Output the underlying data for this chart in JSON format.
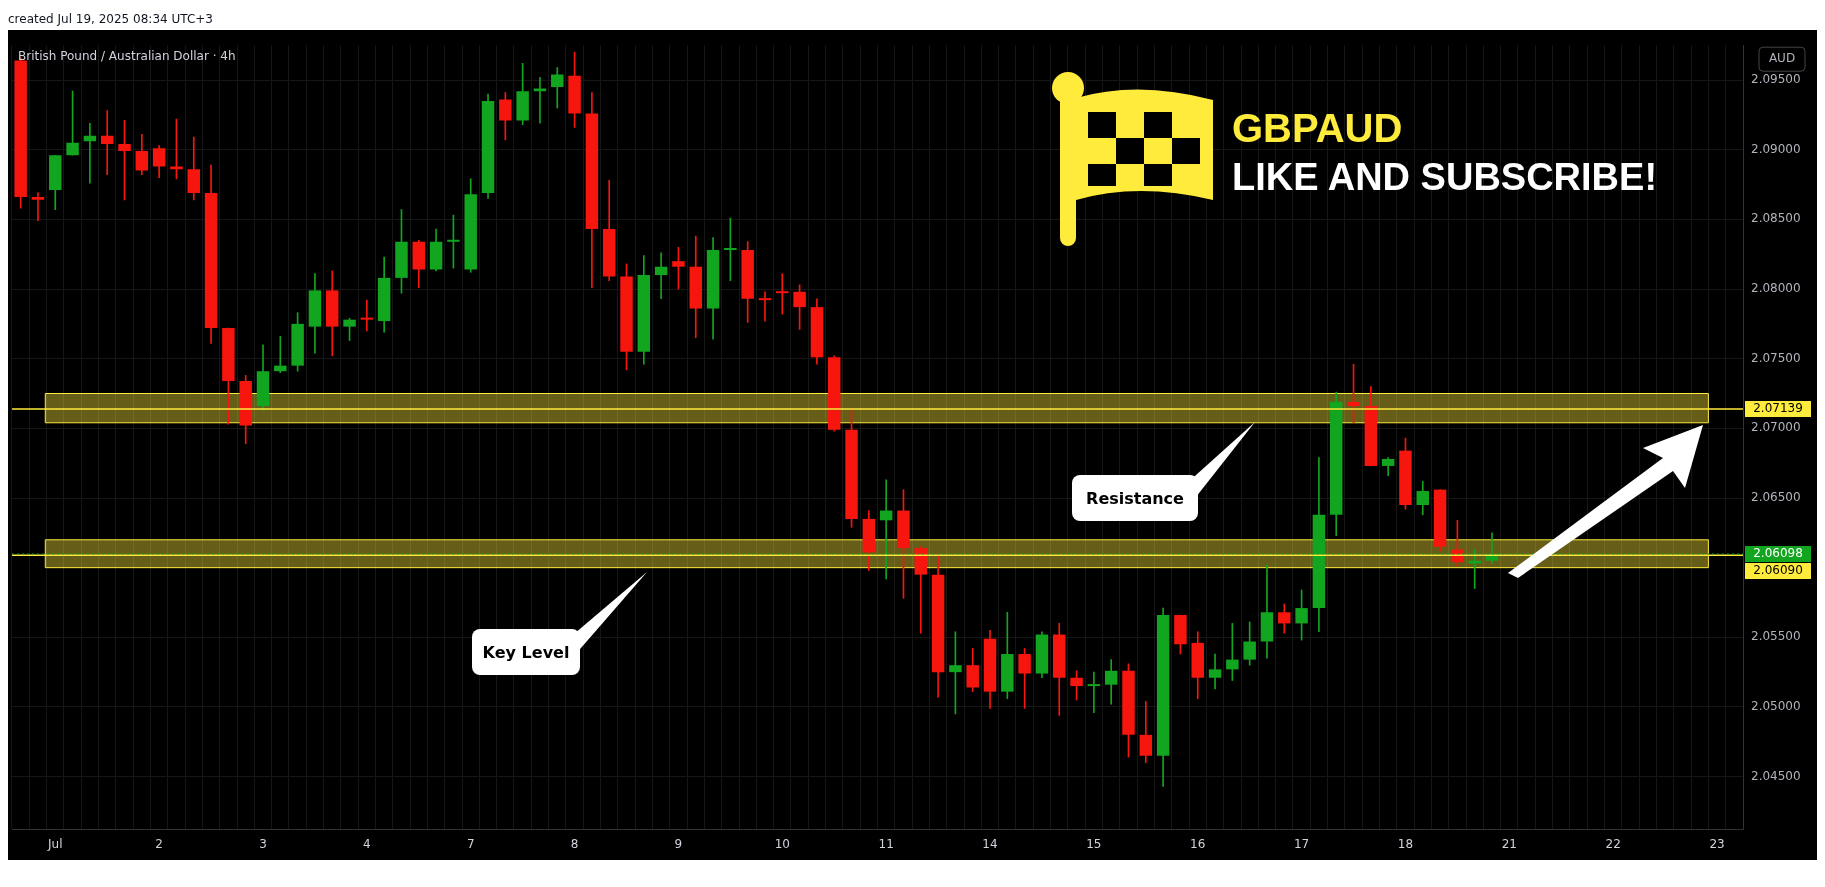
{
  "chart_data": {
    "type": "candlestick",
    "title": "British Pound / Australian Dollar · 4h",
    "ylabel": "AUD",
    "annotations": [
      "created Jul 19, 2025 08:34 UTC+3",
      "GBPAUD",
      "LIKE AND SUBSCRIBE!",
      "Resistance",
      "Key Level"
    ],
    "categories": [
      null,
      null,
      "Jul",
      null,
      null,
      null,
      null,
      null,
      "2",
      null,
      null,
      null,
      null,
      null,
      "3",
      null,
      null,
      null,
      null,
      null,
      "4",
      null,
      null,
      null,
      null,
      null,
      "7",
      null,
      null,
      null,
      null,
      null,
      "8",
      null,
      null,
      null,
      null,
      null,
      "9",
      null,
      null,
      null,
      null,
      null,
      "10",
      null,
      null,
      null,
      null,
      null,
      "11",
      null,
      null,
      null,
      null,
      null,
      "14",
      null,
      null,
      null,
      null,
      null,
      "15",
      null,
      null,
      null,
      null,
      null,
      "16",
      null,
      null,
      null,
      null,
      null,
      "17",
      null,
      null,
      null,
      null,
      null,
      "18",
      null,
      null,
      null,
      null,
      null,
      "21",
      null,
      null,
      null,
      null,
      null,
      "22",
      null,
      null,
      null,
      null,
      null,
      "23",
      null
    ],
    "ohlc": [
      [
        2.0964,
        2.0966,
        2.0858,
        2.0866
      ],
      [
        2.0866,
        2.0869,
        2.0849,
        2.0864
      ],
      [
        2.0871,
        2.0896,
        2.0857,
        2.0896
      ],
      [
        2.0896,
        2.0942,
        2.0896,
        2.0905
      ],
      [
        2.0906,
        2.0919,
        2.0876,
        2.091
      ],
      [
        2.091,
        2.0928,
        2.0882,
        2.0904
      ],
      [
        2.0904,
        2.0921,
        2.0864,
        2.0899
      ],
      [
        2.0899,
        2.0911,
        2.0882,
        2.0885
      ],
      [
        2.0901,
        2.0903,
        2.088,
        2.0888
      ],
      [
        2.0888,
        2.0922,
        2.0879,
        2.0886
      ],
      [
        2.0886,
        2.0909,
        2.0864,
        2.0869
      ],
      [
        2.0869,
        2.0889,
        2.0761,
        2.0772
      ],
      [
        2.0772,
        2.0772,
        2.0703,
        2.0734
      ],
      [
        2.0734,
        2.0738,
        2.0689,
        2.0702
      ],
      [
        2.0716,
        2.076,
        2.0713,
        2.0741
      ],
      [
        2.0741,
        2.0766,
        2.074,
        2.0745
      ],
      [
        2.0745,
        2.0783,
        2.0741,
        2.0775
      ],
      [
        2.0773,
        2.0811,
        2.0754,
        2.0799
      ],
      [
        2.0799,
        2.0813,
        2.0752,
        2.0773
      ],
      [
        2.0773,
        2.0779,
        2.0763,
        2.0778
      ],
      [
        2.0779,
        2.0792,
        2.077,
        2.0778
      ],
      [
        2.0777,
        2.0823,
        2.0769,
        2.0808
      ],
      [
        2.0808,
        2.0857,
        2.0797,
        2.0834
      ],
      [
        2.0834,
        2.0835,
        2.0801,
        2.0814
      ],
      [
        2.0814,
        2.0843,
        2.0813,
        2.0834
      ],
      [
        2.0834,
        2.0853,
        2.0815,
        2.0835
      ],
      [
        2.0814,
        2.0879,
        2.0812,
        2.0868
      ],
      [
        2.0869,
        2.094,
        2.0865,
        2.0935
      ],
      [
        2.0936,
        2.0941,
        2.0907,
        2.0921
      ],
      [
        2.0921,
        2.0962,
        2.0918,
        2.0942
      ],
      [
        2.0942,
        2.0952,
        2.0919,
        2.0944
      ],
      [
        2.0945,
        2.0959,
        2.093,
        2.0954
      ],
      [
        2.0953,
        2.097,
        2.0916,
        2.0926
      ],
      [
        2.0926,
        2.0941,
        2.0801,
        2.0843
      ],
      [
        2.0843,
        2.0878,
        2.0806,
        2.0809
      ],
      [
        2.0809,
        2.0818,
        2.0742,
        2.0755
      ],
      [
        2.0755,
        2.0824,
        2.0746,
        2.081
      ],
      [
        2.081,
        2.0826,
        2.0793,
        2.0816
      ],
      [
        2.082,
        2.083,
        2.08,
        2.0816
      ],
      [
        2.0816,
        2.0838,
        2.0765,
        2.0786
      ],
      [
        2.0786,
        2.0837,
        2.0764,
        2.0828
      ],
      [
        2.0828,
        2.0851,
        2.0806,
        2.0829
      ],
      [
        2.0828,
        2.0834,
        2.0776,
        2.0793
      ],
      [
        2.0793,
        2.0798,
        2.0777,
        2.0792
      ],
      [
        2.0798,
        2.0811,
        2.0782,
        2.0797
      ],
      [
        2.0798,
        2.0803,
        2.0771,
        2.0787
      ],
      [
        2.0787,
        2.0793,
        2.0746,
        2.0751
      ],
      [
        2.0751,
        2.0752,
        2.0698,
        2.0699
      ],
      [
        2.0699,
        2.0714,
        2.0629,
        2.0635
      ],
      [
        2.0635,
        2.0641,
        2.0598,
        2.0611
      ],
      [
        2.0634,
        2.0663,
        2.0592,
        2.0641
      ],
      [
        2.0641,
        2.0656,
        2.0578,
        2.0614
      ],
      [
        2.0614,
        2.0615,
        2.0553,
        2.0595
      ],
      [
        2.0595,
        2.061,
        2.0507,
        2.0525
      ],
      [
        2.0525,
        2.0554,
        2.0495,
        2.053
      ],
      [
        2.053,
        2.0542,
        2.0511,
        2.0514
      ],
      [
        2.0549,
        2.0555,
        2.0499,
        2.0511
      ],
      [
        2.0511,
        2.0568,
        2.0506,
        2.0538
      ],
      [
        2.0538,
        2.0542,
        2.0499,
        2.0524
      ],
      [
        2.0524,
        2.0554,
        2.0521,
        2.0552
      ],
      [
        2.0552,
        2.056,
        2.0494,
        2.0521
      ],
      [
        2.0521,
        2.0526,
        2.0505,
        2.0515
      ],
      [
        2.0515,
        2.0525,
        2.0496,
        2.0516
      ],
      [
        2.0516,
        2.0534,
        2.0502,
        2.0526
      ],
      [
        2.0526,
        2.0531,
        2.0464,
        2.048
      ],
      [
        2.048,
        2.0504,
        2.046,
        2.0465
      ],
      [
        2.0465,
        2.0571,
        2.0443,
        2.0566
      ],
      [
        2.0566,
        2.0566,
        2.0538,
        2.0545
      ],
      [
        2.0546,
        2.0554,
        2.0506,
        2.0521
      ],
      [
        2.0521,
        2.0538,
        2.0513,
        2.0527
      ],
      [
        2.0527,
        2.056,
        2.0519,
        2.0534
      ],
      [
        2.0534,
        2.0561,
        2.053,
        2.0547
      ],
      [
        2.0547,
        2.0602,
        2.0535,
        2.0568
      ],
      [
        2.0568,
        2.0574,
        2.0553,
        2.056
      ],
      [
        2.056,
        2.0584,
        2.0548,
        2.0571
      ],
      [
        2.0571,
        2.0679,
        2.0554,
        2.0638
      ],
      [
        2.0638,
        2.0726,
        2.0623,
        2.0719
      ],
      [
        2.0719,
        2.0746,
        2.0704,
        2.0716
      ],
      [
        2.0716,
        2.073,
        2.0673,
        2.0673
      ],
      [
        2.0673,
        2.0679,
        2.0666,
        2.0678
      ],
      [
        2.0684,
        2.0693,
        2.0642,
        2.0645
      ],
      [
        2.0645,
        2.0662,
        2.0638,
        2.0655
      ],
      [
        2.0656,
        2.0656,
        2.0612,
        2.0615
      ],
      [
        2.0613,
        2.0634,
        2.0601,
        2.0604
      ],
      [
        2.0603,
        2.0613,
        2.0585,
        2.0605
      ],
      [
        2.0605,
        2.0625,
        2.0603,
        2.06098
      ],
      null,
      null,
      null,
      null,
      null,
      null,
      null,
      null,
      null,
      null,
      null,
      null,
      null,
      null
    ],
    "colors": [
      "#f7160d",
      "#f7160d",
      "#12a51f",
      "#12a51f",
      "#12a51f",
      "#f7160d",
      "#f7160d",
      "#f7160d",
      "#f7160d",
      "#f7160d",
      "#f7160d",
      "#f7160d",
      "#f7160d",
      "#f7160d",
      "#12a51f",
      "#12a51f",
      "#12a51f",
      "#12a51f",
      "#f7160d",
      "#12a51f",
      "#f7160d",
      "#12a51f",
      "#12a51f",
      "#f7160d",
      "#12a51f",
      "#12a51f",
      "#12a51f",
      "#12a51f",
      "#f7160d",
      "#12a51f",
      "#12a51f",
      "#12a51f",
      "#f7160d",
      "#f7160d",
      "#f7160d",
      "#f7160d",
      "#12a51f",
      "#12a51f",
      "#f7160d",
      "#f7160d",
      "#12a51f",
      "#12a51f",
      "#f7160d",
      "#f7160d",
      "#f7160d",
      "#f7160d",
      "#f7160d",
      "#f7160d",
      "#f7160d",
      "#f7160d",
      "#12a51f",
      "#f7160d",
      "#f7160d",
      "#f7160d",
      "#12a51f",
      "#f7160d",
      "#f7160d",
      "#12a51f",
      "#f7160d",
      "#12a51f",
      "#f7160d",
      "#f7160d",
      "#12a51f",
      "#12a51f",
      "#f7160d",
      "#f7160d",
      "#12a51f",
      "#f7160d",
      "#f7160d",
      "#12a51f",
      "#12a51f",
      "#12a51f",
      "#12a51f",
      "#f7160d",
      "#12a51f",
      "#12a51f",
      "#12a51f",
      "#f7160d",
      "#f7160d",
      "#12a51f",
      "#f7160d",
      "#12a51f",
      "#f7160d",
      "#f7160d",
      "#12a51f",
      "#12a51f",
      null,
      null,
      null,
      null,
      null,
      null,
      null,
      null,
      null,
      null,
      null,
      null,
      null,
      null
    ],
    "ylim": [
      2.0412,
      2.0975
    ],
    "yticks": [
      {
        "value": 2.045,
        "label": "2.04500"
      },
      {
        "value": 2.05,
        "label": "2.05000"
      },
      {
        "value": 2.055,
        "label": "2.05500"
      },
      {
        "value": 2.065,
        "label": "2.06500"
      },
      {
        "value": 2.07,
        "label": "2.07000"
      },
      {
        "value": 2.075,
        "label": "2.07500"
      },
      {
        "value": 2.08,
        "label": "2.08000"
      },
      {
        "value": 2.085,
        "label": "2.08500"
      },
      {
        "value": 2.09,
        "label": "2.09000"
      },
      {
        "value": 2.095,
        "label": "2.09500"
      }
    ],
    "bands": [
      {
        "axis": "y",
        "from": 2.0704,
        "to": 2.0725,
        "color": "#ffeb3b"
      },
      {
        "axis": "y",
        "from": 2.06,
        "to": 2.062,
        "color": "#ffeb3b"
      }
    ],
    "ref_lines": [
      {
        "axis": "y",
        "value": 2.07139,
        "label": "2.07139",
        "color": "#ffeb3b"
      },
      {
        "axis": "y",
        "value": 2.0609,
        "label": "2.06090",
        "color": "#ffeb3b"
      },
      {
        "axis": "y",
        "value": 2.06098,
        "label": "2.06098",
        "color": "#12a51f",
        "line_style": "dotted"
      }
    ],
    "grid": true,
    "legend": false
  }
}
